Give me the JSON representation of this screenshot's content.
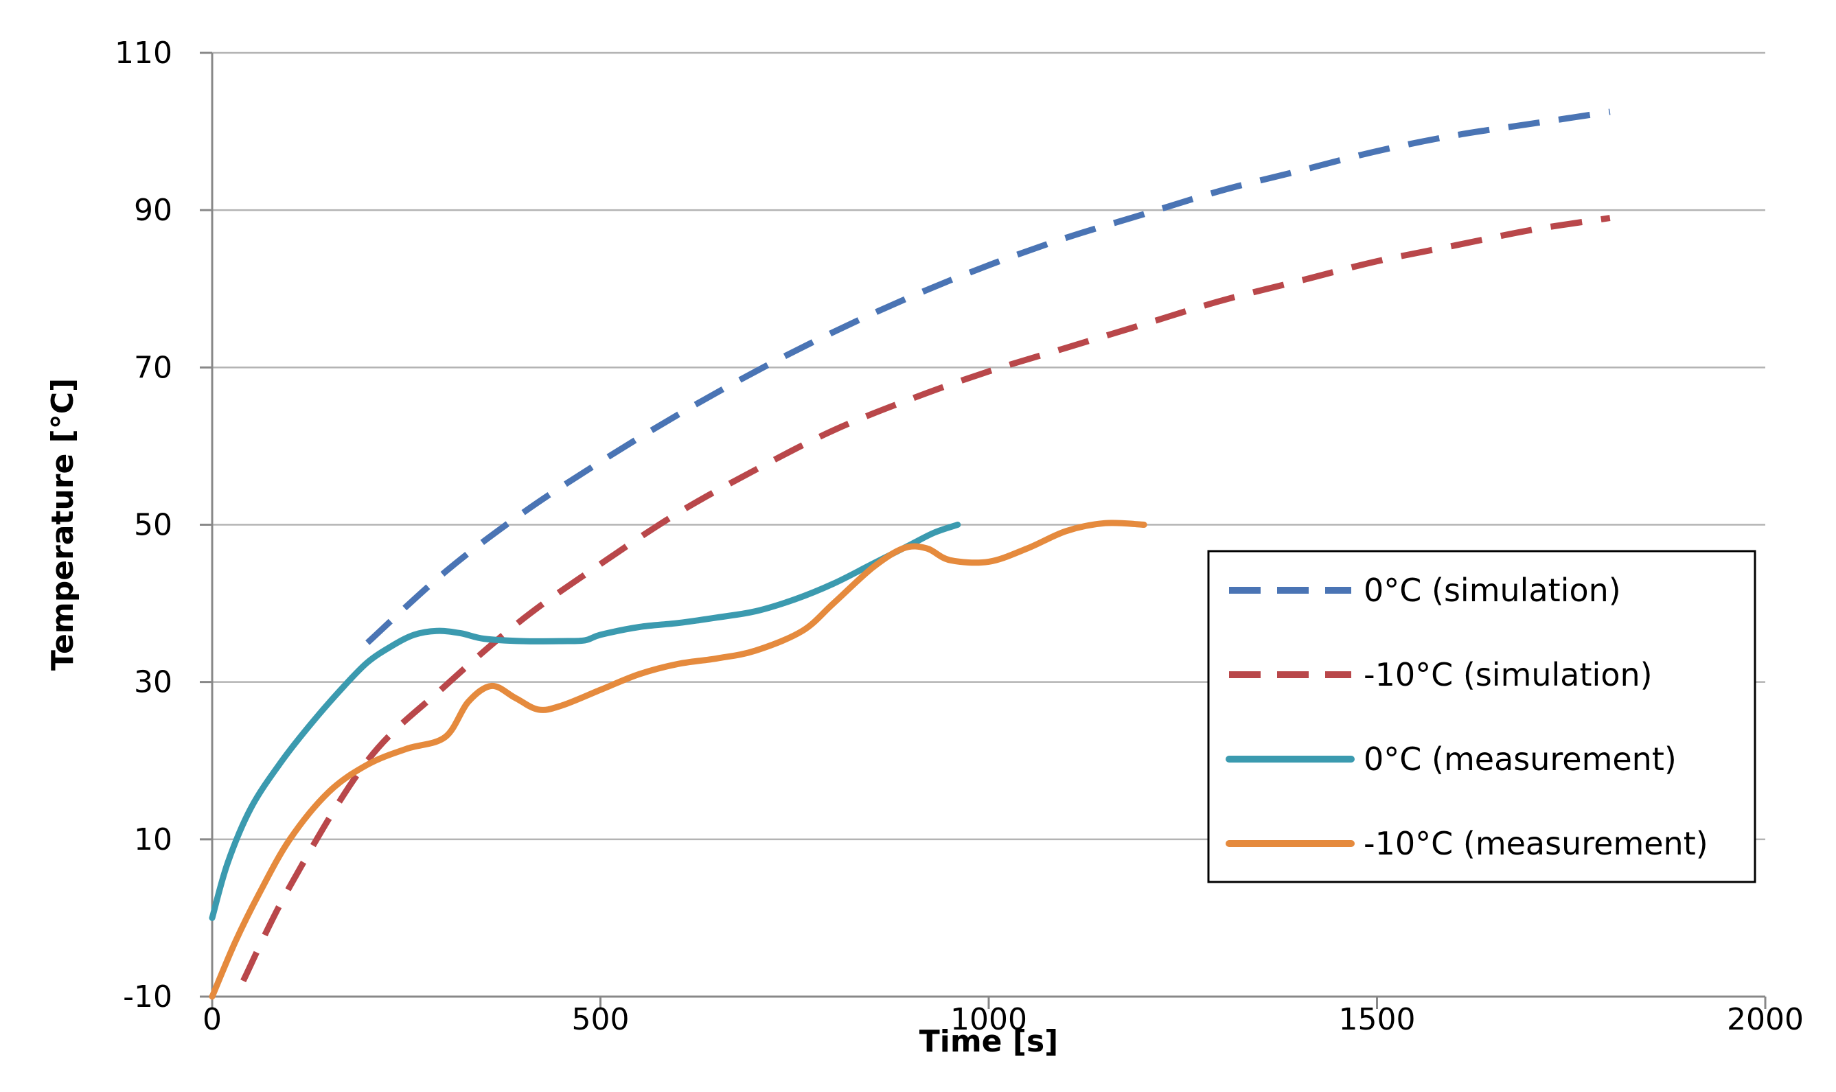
{
  "chart_data": {
    "type": "line",
    "title": "",
    "xlabel": "Time [s]",
    "ylabel": "Temperature [°C]",
    "xlim": [
      0,
      2000
    ],
    "ylim": [
      -10,
      110
    ],
    "xticks": [
      0,
      500,
      1000,
      1500,
      2000
    ],
    "yticks": [
      -10,
      10,
      30,
      50,
      70,
      90,
      110
    ],
    "grid": "horizontal",
    "legend_position": "right",
    "series": [
      {
        "name": "0°C (simulation)",
        "style": "dashed",
        "color": "#4a74b4",
        "x": [
          200,
          300,
          400,
          500,
          600,
          700,
          800,
          900,
          1000,
          1100,
          1200,
          1300,
          1400,
          1500,
          1600,
          1700,
          1800
        ],
        "y": [
          35,
          44,
          51.5,
          58,
          64,
          69.5,
          74.5,
          79,
          83,
          86.5,
          89.5,
          92.5,
          95,
          97.5,
          99.5,
          101,
          102.5
        ]
      },
      {
        "name": "-10°C (simulation)",
        "style": "dashed",
        "color": "#b9474a",
        "x": [
          40,
          100,
          200,
          300,
          400,
          500,
          600,
          700,
          800,
          900,
          1000,
          1100,
          1200,
          1300,
          1400,
          1500,
          1600,
          1700,
          1800
        ],
        "y": [
          -8,
          4,
          20,
          29.5,
          38,
          45,
          51.5,
          57,
          62,
          66,
          69.5,
          72.5,
          75.5,
          78.5,
          81,
          83.5,
          85.5,
          87.5,
          89
        ]
      },
      {
        "name": "0°C (measurement)",
        "style": "solid",
        "color": "#3b9aaf",
        "x": [
          0,
          20,
          50,
          90,
          130,
          170,
          200,
          230,
          260,
          290,
          320,
          350,
          400,
          450,
          480,
          500,
          550,
          600,
          650,
          700,
          750,
          800,
          850,
          900,
          930,
          960
        ],
        "y": [
          0,
          7,
          14,
          20,
          25,
          29.5,
          32.5,
          34.5,
          36,
          36.5,
          36.2,
          35.5,
          35.2,
          35.2,
          35.3,
          36,
          37,
          37.5,
          38.2,
          39,
          40.5,
          42.5,
          45,
          47.5,
          49,
          50
        ]
      },
      {
        "name": "-10°C (measurement)",
        "style": "solid",
        "color": "#e58a3d",
        "x": [
          0,
          30,
          60,
          100,
          150,
          200,
          250,
          300,
          330,
          360,
          390,
          420,
          450,
          500,
          550,
          600,
          650,
          700,
          760,
          800,
          850,
          890,
          920,
          950,
          1000,
          1050,
          1100,
          1150,
          1200
        ],
        "y": [
          -10,
          -3,
          3,
          10,
          16,
          19.5,
          21.5,
          23,
          27.5,
          29.5,
          28,
          26.5,
          27,
          29,
          31,
          32.3,
          33,
          34,
          36.5,
          40,
          44.5,
          47,
          47,
          45.5,
          45.3,
          47,
          49.2,
          50.2,
          50
        ]
      }
    ]
  }
}
